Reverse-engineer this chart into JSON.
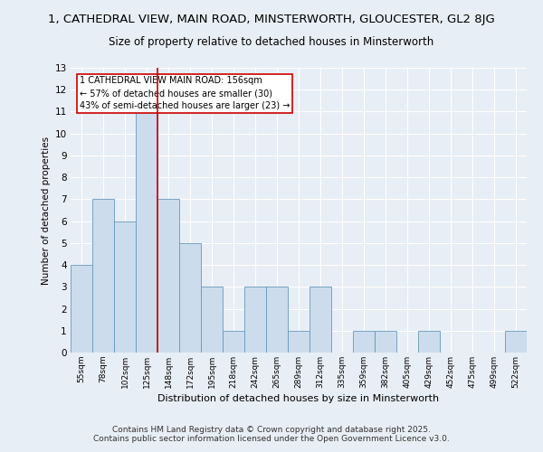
{
  "title": "1, CATHEDRAL VIEW, MAIN ROAD, MINSTERWORTH, GLOUCESTER, GL2 8JG",
  "subtitle": "Size of property relative to detached houses in Minsterworth",
  "xlabel": "Distribution of detached houses by size in Minsterworth",
  "ylabel": "Number of detached properties",
  "bar_labels": [
    "55sqm",
    "78sqm",
    "102sqm",
    "125sqm",
    "148sqm",
    "172sqm",
    "195sqm",
    "218sqm",
    "242sqm",
    "265sqm",
    "289sqm",
    "312sqm",
    "335sqm",
    "359sqm",
    "382sqm",
    "405sqm",
    "429sqm",
    "452sqm",
    "475sqm",
    "499sqm",
    "522sqm"
  ],
  "bar_values": [
    4,
    7,
    6,
    11,
    7,
    5,
    3,
    1,
    3,
    3,
    1,
    3,
    0,
    1,
    1,
    0,
    1,
    0,
    0,
    0,
    1
  ],
  "bar_color": "#ccdcec",
  "bar_edge_color": "#6699bb",
  "subject_line_index": 4,
  "subject_line_color": "#cc0000",
  "annotation_text": "1 CATHEDRAL VIEW MAIN ROAD: 156sqm\n← 57% of detached houses are smaller (30)\n43% of semi-detached houses are larger (23) →",
  "annotation_box_color": "#ffffff",
  "annotation_box_edge": "#cc0000",
  "ylim": [
    0,
    13
  ],
  "yticks": [
    0,
    1,
    2,
    3,
    4,
    5,
    6,
    7,
    8,
    9,
    10,
    11,
    12,
    13
  ],
  "bg_color": "#e8eef5",
  "grid_color": "#ffffff",
  "footer": "Contains HM Land Registry data © Crown copyright and database right 2025.\nContains public sector information licensed under the Open Government Licence v3.0.",
  "title_fontsize": 9.5,
  "subtitle_fontsize": 8.5,
  "footer_fontsize": 6.5,
  "ylabel_fontsize": 7.5,
  "xlabel_fontsize": 8
}
